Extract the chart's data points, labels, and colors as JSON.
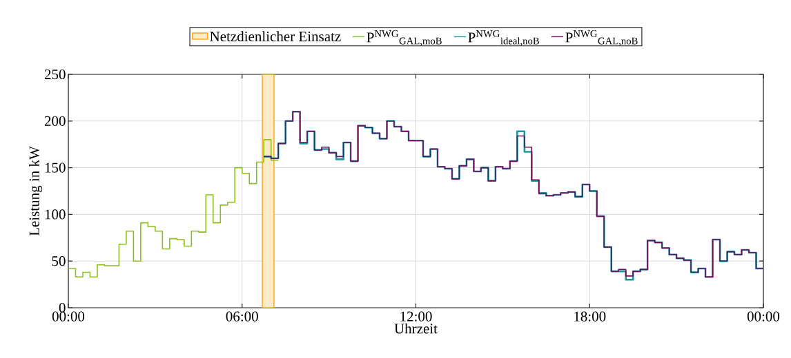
{
  "chart_data": {
    "type": "step",
    "xlabel": "Uhrzeit",
    "ylabel": "Leistung in kW",
    "xlim": [
      0,
      24
    ],
    "ylim": [
      0,
      250
    ],
    "xticks": [
      {
        "value": 0,
        "label": "00:00"
      },
      {
        "value": 6,
        "label": "06:00"
      },
      {
        "value": 12,
        "label": "12:00"
      },
      {
        "value": 18,
        "label": "18:00"
      },
      {
        "value": 24,
        "label": "00:00"
      }
    ],
    "yticks": [
      0,
      50,
      100,
      150,
      200,
      250
    ],
    "grid": true,
    "legend": "top",
    "bands": [
      {
        "axis": "x",
        "from": 6.7,
        "to": 7.1,
        "label": "Netzdienlicher Einsatz",
        "color": "#fdebc8"
      }
    ],
    "series": [
      {
        "name": "P$^{NWG}$$_{GAL,moB}$",
        "color": "#8cbe1e",
        "x": [
          0,
          0.25,
          0.5,
          0.75,
          1,
          1.25,
          1.5,
          1.75,
          2,
          2.25,
          2.5,
          2.75,
          3,
          3.25,
          3.5,
          3.75,
          4,
          4.25,
          4.5,
          4.75,
          5,
          5.25,
          5.5,
          5.75,
          6,
          6.25,
          6.5,
          6.75,
          7,
          7.25
        ],
        "values": [
          42,
          33,
          38,
          33,
          46,
          45,
          45,
          68,
          82,
          50,
          91,
          87,
          82,
          63,
          74,
          73,
          66,
          82,
          81,
          121,
          91,
          110,
          113,
          150,
          144,
          133,
          156,
          180,
          158,
          158
        ]
      },
      {
        "name": "P$^{NWG}$$_{ideal,noB}$",
        "color": "#1a9aa0",
        "x": [
          6.75,
          7,
          7.25,
          7.5,
          7.75,
          8,
          8.25,
          8.5,
          8.75,
          9,
          9.25,
          9.5,
          9.75,
          10,
          10.25,
          10.5,
          10.75,
          11,
          11.25,
          11.5,
          11.75,
          12,
          12.25,
          12.5,
          12.75,
          13,
          13.25,
          13.5,
          13.75,
          14,
          14.25,
          14.5,
          14.75,
          15,
          15.25,
          15.5,
          15.75,
          16,
          16.25,
          16.5,
          16.75,
          17,
          17.25,
          17.5,
          17.75,
          18,
          18.25,
          18.5,
          18.75,
          19,
          19.25,
          19.5,
          19.75,
          20,
          20.25,
          20.5,
          20.75,
          21,
          21.25,
          21.5,
          21.75,
          22,
          22.25,
          22.5,
          22.75,
          23,
          23.25,
          23.5,
          23.75,
          24
        ],
        "values": [
          162,
          160,
          176,
          200,
          210,
          176,
          189,
          169,
          170,
          166,
          159,
          177,
          157,
          195,
          193,
          187,
          181,
          200,
          194,
          189,
          179,
          179,
          162,
          170,
          151,
          149,
          138,
          152,
          159,
          146,
          150,
          136,
          151,
          149,
          157,
          189,
          167,
          136,
          123,
          120,
          121,
          123,
          124,
          119,
          132,
          125,
          98,
          65,
          39,
          39,
          30,
          39,
          41,
          72,
          70,
          64,
          57,
          53,
          51,
          38,
          42,
          33,
          73,
          50,
          60,
          57,
          62,
          59,
          42,
          42
        ]
      },
      {
        "name": "P$^{NWG}$$_{GAL,noB}$",
        "color": "#6b0f5f",
        "x": [
          6.75,
          7,
          7.25,
          7.5,
          7.75,
          8,
          8.25,
          8.5,
          8.75,
          9,
          9.25,
          9.5,
          9.75,
          10,
          10.25,
          10.5,
          10.75,
          11,
          11.25,
          11.5,
          11.75,
          12,
          12.25,
          12.5,
          12.75,
          13,
          13.25,
          13.5,
          13.75,
          14,
          14.25,
          14.5,
          14.75,
          15,
          15.25,
          15.5,
          15.75,
          16,
          16.25,
          16.5,
          16.75,
          17,
          17.25,
          17.5,
          17.75,
          18,
          18.25,
          18.5,
          18.75,
          19,
          19.25,
          19.5,
          19.75,
          20,
          20.25,
          20.5,
          20.75,
          21,
          21.25,
          21.5,
          21.75,
          22,
          22.25,
          22.5,
          22.75,
          23,
          23.25,
          23.5,
          23.75,
          24
        ],
        "values": [
          162,
          160,
          176,
          200,
          210,
          177,
          189,
          169,
          172,
          166,
          162,
          177,
          157,
          195,
          193,
          187,
          181,
          200,
          194,
          189,
          179,
          179,
          162,
          170,
          151,
          149,
          138,
          152,
          159,
          146,
          150,
          136,
          151,
          149,
          157,
          184,
          172,
          137,
          122,
          120,
          121,
          123,
          124,
          119,
          132,
          125,
          98,
          65,
          39,
          41,
          34,
          39,
          41,
          72,
          70,
          64,
          57,
          53,
          51,
          38,
          42,
          33,
          73,
          50,
          60,
          57,
          62,
          59,
          42,
          42
        ]
      }
    ]
  }
}
